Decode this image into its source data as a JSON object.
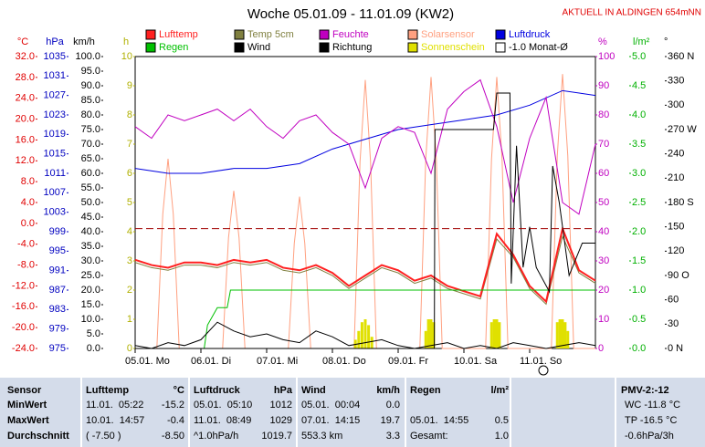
{
  "header": {
    "title": "Woche 05.01.09 - 11.01.09 (KW2)",
    "location": "AKTUELL IN ALDINGEN 654mNN"
  },
  "chart_data": {
    "type": "line",
    "xlim": [
      0,
      7
    ],
    "xticks": [
      {
        "value": 0,
        "label": "05.01. Mo"
      },
      {
        "value": 1,
        "label": "06.01. Di"
      },
      {
        "value": 2,
        "label": "07.01. Mi"
      },
      {
        "value": 3,
        "label": "08.01. Do"
      },
      {
        "value": 4,
        "label": "09.01. Fr"
      },
      {
        "value": 5,
        "label": "10.01. Sa"
      },
      {
        "value": 6,
        "label": "11.01. So"
      }
    ],
    "axes": [
      {
        "id": "temp",
        "side": "left",
        "unit": "°C",
        "color": "#e00000",
        "lim": [
          -24,
          32
        ],
        "ticks": [
          {
            "value": 32,
            "label": "32.0"
          },
          {
            "value": 28,
            "label": "28.0"
          },
          {
            "value": 24,
            "label": "24.0"
          },
          {
            "value": 20,
            "label": "20.0"
          },
          {
            "value": 16,
            "label": "16.0"
          },
          {
            "value": 12,
            "label": "12.0"
          },
          {
            "value": 8,
            "label": "8.0"
          },
          {
            "value": 4,
            "label": "4.0"
          },
          {
            "value": 0,
            "label": "0.0"
          },
          {
            "value": -4,
            "label": "-4.0"
          },
          {
            "value": -8,
            "label": "-8.0"
          },
          {
            "value": -12,
            "label": "-12.0"
          },
          {
            "value": -16,
            "label": "-16.0"
          },
          {
            "value": -20,
            "label": "-20.0"
          },
          {
            "value": -24,
            "label": "-24.0"
          }
        ]
      },
      {
        "id": "press",
        "side": "left",
        "unit": "hPa",
        "color": "#0000c0",
        "lim": [
          975,
          1035
        ],
        "ticks": [
          1035,
          1031,
          1027,
          1023,
          1019,
          1015,
          1011,
          1007,
          1003,
          999,
          995,
          991,
          987,
          983,
          979,
          975
        ]
      },
      {
        "id": "wind",
        "side": "left",
        "unit": "km/h",
        "color": "#000000",
        "lim": [
          0,
          100
        ],
        "ticks": [
          {
            "value": 100,
            "label": "100.0"
          },
          {
            "value": 95,
            "label": "95.0"
          },
          {
            "value": 90,
            "label": "90.0"
          },
          {
            "value": 85,
            "label": "85.0"
          },
          {
            "value": 80,
            "label": "80.0"
          },
          {
            "value": 75,
            "label": "75.0"
          },
          {
            "value": 70,
            "label": "70.0"
          },
          {
            "value": 65,
            "label": "65.0"
          },
          {
            "value": 60,
            "label": "60.0"
          },
          {
            "value": 55,
            "label": "55.0"
          },
          {
            "value": 50,
            "label": "50.0"
          },
          {
            "value": 45,
            "label": "45.0"
          },
          {
            "value": 40,
            "label": "40.0"
          },
          {
            "value": 35,
            "label": "35.0"
          },
          {
            "value": 30,
            "label": "30.0"
          },
          {
            "value": 25,
            "label": "25.0"
          },
          {
            "value": 20,
            "label": "20.0"
          },
          {
            "value": 15,
            "label": "15.0"
          },
          {
            "value": 10,
            "label": "10.0"
          },
          {
            "value": 5,
            "label": "5.0"
          },
          {
            "value": 0,
            "label": "0.0"
          }
        ]
      },
      {
        "id": "sun",
        "side": "left",
        "unit": "h",
        "color": "#b0b000",
        "lim": [
          0,
          10
        ],
        "ticks": [
          10,
          9,
          8,
          7,
          6,
          5,
          4,
          3,
          2,
          1,
          0
        ]
      },
      {
        "id": "hum",
        "side": "right",
        "unit": "%",
        "color": "#c000c0",
        "lim": [
          0,
          100
        ],
        "ticks": [
          100,
          90,
          80,
          70,
          60,
          50,
          40,
          30,
          20,
          10,
          0
        ]
      },
      {
        "id": "rain",
        "side": "right",
        "unit": "l/m²",
        "color": "#00b000",
        "lim": [
          0,
          5
        ],
        "ticks": [
          {
            "value": 5,
            "label": "5.0"
          },
          {
            "value": 4.5,
            "label": "4.5"
          },
          {
            "value": 4,
            "label": "4.0"
          },
          {
            "value": 3.5,
            "label": "3.5"
          },
          {
            "value": 3,
            "label": "3.0"
          },
          {
            "value": 2.5,
            "label": "2.5"
          },
          {
            "value": 2,
            "label": "2.0"
          },
          {
            "value": 1.5,
            "label": "1.5"
          },
          {
            "value": 1,
            "label": "1.0"
          },
          {
            "value": 0.5,
            "label": "0.5"
          },
          {
            "value": 0,
            "label": "0.0"
          }
        ]
      },
      {
        "id": "dir",
        "side": "right",
        "unit": "°",
        "color": "#000000",
        "lim": [
          0,
          360
        ],
        "ticks": [
          {
            "value": 360,
            "label": "360 N"
          },
          330,
          300,
          {
            "value": 270,
            "label": "270 W"
          },
          240,
          210,
          {
            "value": 180,
            "label": "180 S"
          },
          150,
          120,
          {
            "value": 90,
            "label": "90 O"
          },
          60,
          30,
          {
            "value": 0,
            "label": "0 N"
          }
        ]
      }
    ],
    "series": [
      {
        "name": "Lufttemp",
        "color": "#ff2020",
        "axis": "temp",
        "width": 2,
        "x": [
          0,
          0.25,
          0.5,
          0.75,
          1,
          1.25,
          1.5,
          1.75,
          2,
          2.25,
          2.5,
          2.75,
          3,
          3.25,
          3.5,
          3.75,
          4,
          4.25,
          4.5,
          4.75,
          5,
          5.25,
          5.5,
          5.75,
          6,
          6.25,
          6.5,
          6.75,
          7
        ],
        "values": [
          -7,
          -8,
          -8.5,
          -7.5,
          -7.5,
          -8,
          -7,
          -7.5,
          -7,
          -8.5,
          -9,
          -8,
          -9.5,
          -12,
          -10,
          -8,
          -9,
          -11,
          -10,
          -12,
          -13,
          -14,
          -2,
          -6,
          -12,
          -15,
          -1,
          -9,
          -11
        ]
      },
      {
        "name": "Temp 5cm",
        "color": "#808040",
        "axis": "temp",
        "width": 1,
        "x": [
          0,
          0.25,
          0.5,
          0.75,
          1,
          1.25,
          1.5,
          1.75,
          2,
          2.25,
          2.5,
          2.75,
          3,
          3.25,
          3.5,
          3.75,
          4,
          4.25,
          4.5,
          4.75,
          5,
          5.25,
          5.5,
          5.75,
          6,
          6.25,
          6.5,
          6.75,
          7
        ],
        "values": [
          -7.5,
          -8.5,
          -9,
          -8,
          -8,
          -8.5,
          -7.5,
          -8,
          -7.5,
          -9,
          -9.5,
          -8.5,
          -10,
          -12.5,
          -10.5,
          -8.5,
          -9.5,
          -11.5,
          -10.5,
          -12.5,
          -13.5,
          -14.5,
          -3,
          -6.5,
          -12.5,
          -15.5,
          -2.5,
          -9.5,
          -11.5
        ]
      },
      {
        "name": "Feuchte",
        "color": "#c000c0",
        "axis": "hum",
        "width": 1,
        "x": [
          0,
          0.25,
          0.5,
          0.75,
          1,
          1.25,
          1.5,
          1.75,
          2,
          2.25,
          2.5,
          2.75,
          3,
          3.25,
          3.5,
          3.75,
          4,
          4.25,
          4.5,
          4.75,
          5,
          5.25,
          5.5,
          5.75,
          6,
          6.25,
          6.5,
          6.75,
          7
        ],
        "values": [
          76,
          72,
          80,
          78,
          80,
          82,
          78,
          82,
          76,
          72,
          78,
          80,
          74,
          70,
          55,
          72,
          76,
          74,
          60,
          82,
          88,
          92,
          76,
          50,
          72,
          86,
          50,
          46,
          70
        ]
      },
      {
        "name": "Solarsensor",
        "color": "#ffa080",
        "axis": "hum",
        "width": 1,
        "x": [
          0,
          0.33,
          0.42,
          0.5,
          0.58,
          0.67,
          1.33,
          1.42,
          1.5,
          1.58,
          1.67,
          2.33,
          2.42,
          2.5,
          2.58,
          2.67,
          3.33,
          3.42,
          3.5,
          3.58,
          3.67,
          4.33,
          4.42,
          4.5,
          4.58,
          4.67,
          5.33,
          5.42,
          5.5,
          5.58,
          5.67,
          6.33,
          6.42,
          6.5,
          6.58,
          6.67,
          7
        ],
        "values": [
          0,
          0,
          46,
          65,
          46,
          0,
          0,
          38,
          54,
          38,
          0,
          0,
          36,
          52,
          36,
          0,
          0,
          64,
          92,
          64,
          0,
          0,
          65,
          93,
          65,
          0,
          0,
          65,
          93,
          65,
          0,
          0,
          66,
          94,
          66,
          0,
          0
        ]
      },
      {
        "name": "Luftdruck",
        "color": "#0000e0",
        "axis": "press",
        "width": 1,
        "x": [
          0,
          0.5,
          1,
          1.5,
          2,
          2.5,
          3,
          3.5,
          4,
          4.5,
          5,
          5.5,
          6,
          6.5,
          7
        ],
        "values": [
          1012,
          1011,
          1011,
          1012,
          1012,
          1013,
          1016,
          1018,
          1020,
          1021,
          1022,
          1023,
          1025,
          1028,
          1027
        ]
      },
      {
        "name": "Regen",
        "color": "#00c000",
        "axis": "rain",
        "width": 1,
        "x": [
          0,
          1.05,
          1.1,
          1.25,
          1.4,
          1.45,
          7
        ],
        "values": [
          0,
          0,
          0.4,
          0.7,
          0.7,
          1.0,
          1.0
        ]
      },
      {
        "name": "Wind",
        "color": "#000000",
        "axis": "wind",
        "width": 1,
        "x": [
          0,
          0.25,
          0.5,
          0.75,
          1,
          1.25,
          1.5,
          1.75,
          2,
          2.25,
          2.5,
          2.75,
          3,
          3.25,
          3.5,
          3.75,
          4,
          4.25,
          4.5,
          4.75,
          5,
          5.25,
          5.5,
          5.75,
          6,
          6.25,
          6.5,
          6.75,
          7
        ],
        "values": [
          1,
          0,
          2,
          1,
          3,
          9,
          6,
          4,
          5,
          3,
          2,
          6,
          4,
          1,
          2,
          3,
          1,
          0,
          1,
          2,
          0,
          1,
          0,
          2,
          1,
          0,
          1,
          2,
          1
        ]
      },
      {
        "name": "Richtung",
        "color": "#000000",
        "axis": "dir",
        "width": 1,
        "x": [
          0,
          4.55,
          4.56,
          5.45,
          5.5,
          5.7,
          5.72,
          5.8,
          5.9,
          6.0,
          6.1,
          6.3,
          6.35,
          6.45,
          6.6,
          6.8,
          7
        ],
        "values": [
          0,
          0,
          270,
          270,
          315,
          315,
          80,
          250,
          100,
          150,
          100,
          70,
          225,
          180,
          90,
          130,
          130
        ]
      },
      {
        "name": "Sonnenschein",
        "color": "#e0e000",
        "axis": "sun",
        "style": "bar",
        "x": [
          3.35,
          3.4,
          3.45,
          3.5,
          3.55,
          3.6,
          4.42,
          4.46,
          4.5,
          4.54,
          5.42,
          5.46,
          5.5,
          5.54,
          6.42,
          6.46,
          6.5,
          6.54,
          6.58
        ],
        "values": [
          0.3,
          0.6,
          0.9,
          1.0,
          0.8,
          0.4,
          0.6,
          1.0,
          1.0,
          0.9,
          0.9,
          1.0,
          1.0,
          0.9,
          0.9,
          1.0,
          1.0,
          0.9,
          0.6
        ]
      },
      {
        "name": "-1.0 Monat-Ø",
        "color": "#a00000",
        "legend_color": "#ffffff",
        "axis": "temp",
        "width": 1,
        "dash": true,
        "x": [
          0,
          7
        ],
        "values": [
          -1.0,
          -1.0
        ]
      }
    ]
  },
  "table": {
    "sensor_header": "Sensor",
    "pmv": "PMV-2:-12",
    "columns": [
      {
        "title": "Lufttemp",
        "unit": "°C"
      },
      {
        "title": "Luftdruck",
        "unit": "hPa"
      },
      {
        "title": "Wind",
        "unit": "km/h"
      },
      {
        "title": "Regen",
        "unit": "l/m²"
      }
    ],
    "rows": [
      {
        "label": "MinWert",
        "cells": [
          [
            "11.01.  05:22",
            "-15.2"
          ],
          [
            "05.01.  05:10",
            "1012"
          ],
          [
            "05.01.  00:04",
            "0.0"
          ]
        ],
        "extra": "WC -11.8 °C"
      },
      {
        "label": "MaxWert",
        "cells": [
          [
            "10.01.  14:57",
            "-0.4"
          ],
          [
            "11.01.  08:49",
            "1029"
          ],
          [
            "07.01.  14:15",
            "19.7"
          ],
          [
            "05.01.  14:55",
            "0.5"
          ]
        ],
        "extra": "TP -16.5 °C"
      },
      {
        "label": "Durchschnitt",
        "cells": [
          [
            "( -7.50 )",
            "-8.50"
          ],
          [
            "^1.0hPa/h",
            "1019.7"
          ],
          [
            "553.3 km",
            "3.3"
          ],
          [
            "Gesamt:",
            "1.0"
          ]
        ],
        "extra": "-0.6hPa/3h"
      }
    ]
  }
}
